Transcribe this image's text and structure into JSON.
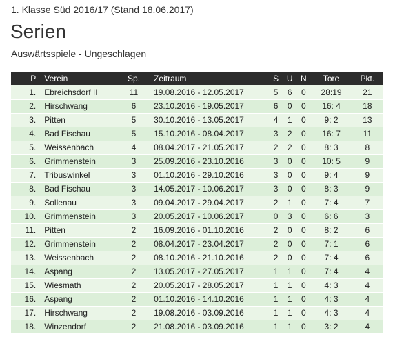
{
  "league_line": "1. Klasse Süd 2016/17 (Stand 18.06.2017)",
  "title": "Serien",
  "subtitle": "Auswärtsspiele - Ungeschlagen",
  "table": {
    "headers": {
      "p": "P",
      "verein": "Verein",
      "sp": "Sp.",
      "zeitraum": "Zeitraum",
      "s": "S",
      "u": "U",
      "n": "N",
      "tore": "Tore",
      "pkt": "Pkt."
    },
    "rows": [
      {
        "p": "1.",
        "verein": "Ebreichsdorf II",
        "sp": "11",
        "zeitraum": "19.08.2016 - 12.05.2017",
        "s": "5",
        "u": "6",
        "n": "0",
        "tore": "28:19",
        "pkt": "21"
      },
      {
        "p": "2.",
        "verein": "Hirschwang",
        "sp": "6",
        "zeitraum": "23.10.2016 - 19.05.2017",
        "s": "6",
        "u": "0",
        "n": "0",
        "tore": "16: 4",
        "pkt": "18"
      },
      {
        "p": "3.",
        "verein": "Pitten",
        "sp": "5",
        "zeitraum": "30.10.2016 - 13.05.2017",
        "s": "4",
        "u": "1",
        "n": "0",
        "tore": "9: 2",
        "pkt": "13"
      },
      {
        "p": "4.",
        "verein": "Bad Fischau",
        "sp": "5",
        "zeitraum": "15.10.2016 - 08.04.2017",
        "s": "3",
        "u": "2",
        "n": "0",
        "tore": "16: 7",
        "pkt": "11"
      },
      {
        "p": "5.",
        "verein": "Weissenbach",
        "sp": "4",
        "zeitraum": "08.04.2017 - 21.05.2017",
        "s": "2",
        "u": "2",
        "n": "0",
        "tore": "8: 3",
        "pkt": "8"
      },
      {
        "p": "6.",
        "verein": "Grimmenstein",
        "sp": "3",
        "zeitraum": "25.09.2016 - 23.10.2016",
        "s": "3",
        "u": "0",
        "n": "0",
        "tore": "10: 5",
        "pkt": "9"
      },
      {
        "p": "7.",
        "verein": "Tribuswinkel",
        "sp": "3",
        "zeitraum": "01.10.2016 - 29.10.2016",
        "s": "3",
        "u": "0",
        "n": "0",
        "tore": "9: 4",
        "pkt": "9"
      },
      {
        "p": "8.",
        "verein": "Bad Fischau",
        "sp": "3",
        "zeitraum": "14.05.2017 - 10.06.2017",
        "s": "3",
        "u": "0",
        "n": "0",
        "tore": "8: 3",
        "pkt": "9"
      },
      {
        "p": "9.",
        "verein": "Sollenau",
        "sp": "3",
        "zeitraum": "09.04.2017 - 29.04.2017",
        "s": "2",
        "u": "1",
        "n": "0",
        "tore": "7: 4",
        "pkt": "7"
      },
      {
        "p": "10.",
        "verein": "Grimmenstein",
        "sp": "3",
        "zeitraum": "20.05.2017 - 10.06.2017",
        "s": "0",
        "u": "3",
        "n": "0",
        "tore": "6: 6",
        "pkt": "3"
      },
      {
        "p": "11.",
        "verein": "Pitten",
        "sp": "2",
        "zeitraum": "16.09.2016 - 01.10.2016",
        "s": "2",
        "u": "0",
        "n": "0",
        "tore": "8: 2",
        "pkt": "6"
      },
      {
        "p": "12.",
        "verein": "Grimmenstein",
        "sp": "2",
        "zeitraum": "08.04.2017 - 23.04.2017",
        "s": "2",
        "u": "0",
        "n": "0",
        "tore": "7: 1",
        "pkt": "6"
      },
      {
        "p": "13.",
        "verein": "Weissenbach",
        "sp": "2",
        "zeitraum": "08.10.2016 - 21.10.2016",
        "s": "2",
        "u": "0",
        "n": "0",
        "tore": "7: 4",
        "pkt": "6"
      },
      {
        "p": "14.",
        "verein": "Aspang",
        "sp": "2",
        "zeitraum": "13.05.2017 - 27.05.2017",
        "s": "1",
        "u": "1",
        "n": "0",
        "tore": "7: 4",
        "pkt": "4"
      },
      {
        "p": "15.",
        "verein": "Wiesmath",
        "sp": "2",
        "zeitraum": "20.05.2017 - 28.05.2017",
        "s": "1",
        "u": "1",
        "n": "0",
        "tore": "4: 3",
        "pkt": "4"
      },
      {
        "p": "16.",
        "verein": "Aspang",
        "sp": "2",
        "zeitraum": "01.10.2016 - 14.10.2016",
        "s": "1",
        "u": "1",
        "n": "0",
        "tore": "4: 3",
        "pkt": "4"
      },
      {
        "p": "17.",
        "verein": "Hirschwang",
        "sp": "2",
        "zeitraum": "19.08.2016 - 03.09.2016",
        "s": "1",
        "u": "1",
        "n": "0",
        "tore": "4: 3",
        "pkt": "4"
      },
      {
        "p": "18.",
        "verein": "Winzendorf",
        "sp": "2",
        "zeitraum": "21.08.2016 - 03.09.2016",
        "s": "1",
        "u": "1",
        "n": "0",
        "tore": "3: 2",
        "pkt": "4"
      }
    ]
  },
  "colors": {
    "header_bg": "#2c2c2c",
    "row_light": "#eaf5e7",
    "row_dark": "#dcefd9"
  }
}
